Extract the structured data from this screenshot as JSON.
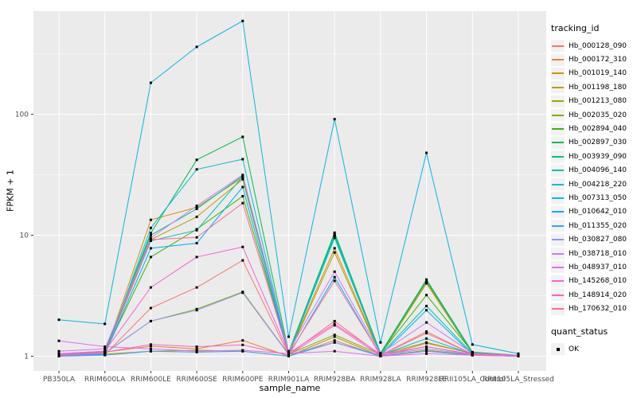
{
  "chart": {
    "xlabel": "sample_name",
    "ylabel": "FPKM + 1",
    "panel_bg": "#EBEBEB",
    "gridline_color": "#FFFFFF",
    "tick_label_color": "#4D4D4D",
    "point_color": "#000000",
    "y_tick_labels": [
      "1",
      "10",
      "100"
    ]
  },
  "legend": {
    "tracking_title": "tracking_id",
    "quant_title": "quant_status",
    "quant_items": [
      {
        "label": "OK"
      }
    ]
  },
  "chart_data": {
    "type": "line",
    "yscale": "log10",
    "ylim": [
      0.75,
      710
    ],
    "y_major_ticks": [
      1,
      10,
      100
    ],
    "y_minor_ticks": [
      3.1623,
      31.623,
      316.23
    ],
    "grid": true,
    "legend_position": "right",
    "point_shape": "black-square",
    "title": "",
    "xlabel": "sample_name",
    "ylabel": "FPKM + 1",
    "categories": [
      "PB350LA",
      "RRIM600LA",
      "RRIM600LE",
      "RRIM600SE",
      "RRIM600PE",
      "RRIM901LA",
      "RRIM928BA",
      "RRIM928LA",
      "RRIM928LE",
      "RRII105LA_Control",
      "RRII105LA_Stressed"
    ],
    "series": [
      {
        "name": "Hb_000128_090",
        "color": "#F8766D",
        "values": [
          1.05,
          1.03,
          2.5,
          3.7,
          6.2,
          1.03,
          1.95,
          1.02,
          1.6,
          1.04,
          1.0
        ]
      },
      {
        "name": "Hb_000172_310",
        "color": "#EA8331",
        "values": [
          1.0,
          1.08,
          1.21,
          1.15,
          1.35,
          1.0,
          1.35,
          1.0,
          1.28,
          1.06,
          1.0
        ]
      },
      {
        "name": "Hb_001019_140",
        "color": "#D89000",
        "values": [
          1.02,
          1.05,
          13.4,
          17.0,
          30.0,
          1.05,
          7.8,
          1.03,
          4.1,
          1.07,
          1.0
        ]
      },
      {
        "name": "Hb_001198_180",
        "color": "#C09B00",
        "values": [
          1.0,
          1.1,
          9.2,
          14.2,
          29.0,
          1.03,
          7.2,
          1.02,
          4.0,
          1.05,
          1.01
        ]
      },
      {
        "name": "Hb_001213_080",
        "color": "#A3A500",
        "values": [
          1.01,
          1.04,
          1.1,
          1.12,
          1.1,
          1.0,
          1.45,
          1.0,
          1.12,
          1.02,
          1.0
        ]
      },
      {
        "name": "Hb_002035_020",
        "color": "#7CAE00",
        "values": [
          1.03,
          1.06,
          1.95,
          2.45,
          3.4,
          1.04,
          1.5,
          1.03,
          1.3,
          1.05,
          1.0
        ]
      },
      {
        "name": "Hb_002894_040",
        "color": "#39B600",
        "values": [
          1.02,
          1.07,
          6.6,
          11.2,
          21.0,
          1.06,
          9.8,
          1.05,
          3.2,
          1.08,
          1.02
        ]
      },
      {
        "name": "Hb_002897_030",
        "color": "#00BB4E",
        "values": [
          1.04,
          1.1,
          10.4,
          42.0,
          65.0,
          1.08,
          10.5,
          1.06,
          4.3,
          1.08,
          1.01
        ]
      },
      {
        "name": "Hb_003939_090",
        "color": "#00C087",
        "values": [
          1.02,
          1.08,
          10.0,
          16.5,
          31.0,
          1.05,
          10.2,
          1.04,
          4.2,
          1.06,
          1.0
        ]
      },
      {
        "name": "Hb_004096_140",
        "color": "#00C0B2",
        "values": [
          1.03,
          1.05,
          9.0,
          11.0,
          30.5,
          1.04,
          9.5,
          1.03,
          2.6,
          1.05,
          1.01
        ]
      },
      {
        "name": "Hb_004218_220",
        "color": "#00BFD6",
        "values": [
          1.02,
          1.04,
          11.5,
          35.0,
          42.5,
          1.05,
          10.0,
          1.02,
          1.4,
          1.04,
          1.0
        ]
      },
      {
        "name": "Hb_007313_050",
        "color": "#00B8E5",
        "values": [
          2.0,
          1.85,
          182.0,
          360.0,
          590.0,
          1.45,
          91.0,
          1.3,
          48.0,
          1.25,
          1.05
        ]
      },
      {
        "name": "Hb_010642_010",
        "color": "#00ACFC",
        "values": [
          1.01,
          1.03,
          7.8,
          8.6,
          25.0,
          1.02,
          4.5,
          1.01,
          2.4,
          1.03,
          1.0
        ]
      },
      {
        "name": "Hb_011355_020",
        "color": "#35A2FF",
        "values": [
          1.0,
          1.02,
          1.1,
          1.08,
          1.1,
          1.0,
          1.3,
          1.0,
          1.1,
          1.02,
          1.0
        ]
      },
      {
        "name": "Hb_030827_080",
        "color": "#9590FF",
        "values": [
          1.04,
          1.06,
          1.95,
          2.4,
          3.35,
          1.03,
          1.3,
          1.02,
          1.15,
          1.03,
          1.0
        ]
      },
      {
        "name": "Hb_038718_010",
        "color": "#C77CFF",
        "values": [
          1.1,
          1.15,
          9.5,
          17.5,
          31.5,
          1.1,
          5.0,
          1.05,
          1.9,
          1.06,
          1.02
        ]
      },
      {
        "name": "Hb_048937_010",
        "color": "#E76BF3",
        "values": [
          1.34,
          1.2,
          1.15,
          1.1,
          1.12,
          1.05,
          1.1,
          1.0,
          1.05,
          1.02,
          1.0
        ]
      },
      {
        "name": "Hb_145268_010",
        "color": "#FA62DB",
        "values": [
          1.05,
          1.1,
          3.7,
          6.6,
          8.0,
          1.06,
          1.85,
          1.04,
          1.2,
          1.04,
          1.0
        ]
      },
      {
        "name": "Hb_148914_020",
        "color": "#FF62BC",
        "values": [
          1.03,
          1.08,
          1.25,
          1.2,
          1.24,
          1.02,
          1.8,
          1.01,
          1.2,
          1.03,
          1.0
        ]
      },
      {
        "name": "Hb_170632_010",
        "color": "#FF6A98",
        "values": [
          1.02,
          1.05,
          9.2,
          9.6,
          18.4,
          1.04,
          4.2,
          1.02,
          1.55,
          1.04,
          1.0
        ]
      }
    ]
  }
}
